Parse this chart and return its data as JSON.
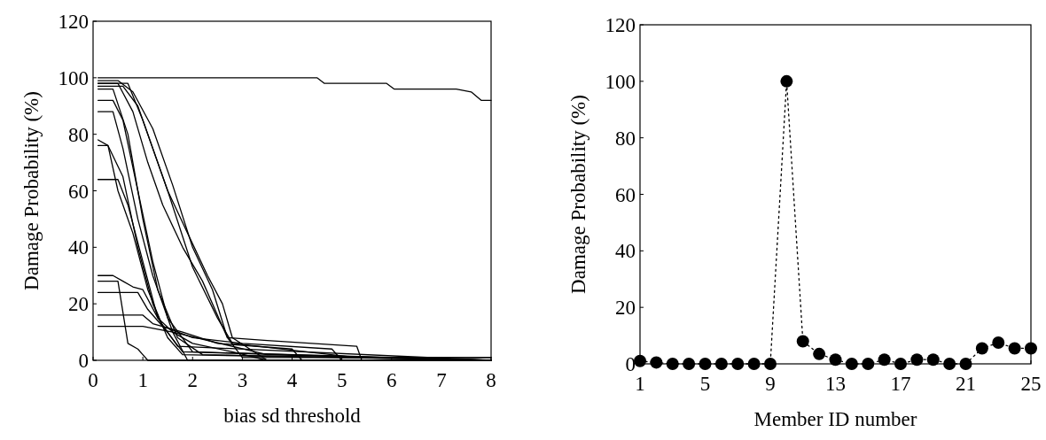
{
  "chart_data": [
    {
      "type": "line",
      "xlabel": "bias sd threshold",
      "ylabel": "Damage Probability (%)",
      "xlim": [
        0,
        8
      ],
      "ylim": [
        0,
        120
      ],
      "xticks": [
        0,
        1,
        2,
        3,
        4,
        5,
        6,
        7,
        8
      ],
      "yticks": [
        0,
        20,
        40,
        60,
        80,
        100,
        120
      ],
      "marker": "none",
      "line_style": "solid",
      "series": [
        {
          "color": "#000000",
          "x": [
            0.1,
            4.5,
            4.65,
            5.9,
            6.05,
            7.3,
            7.6,
            7.8,
            8
          ],
          "values": [
            100,
            100,
            98,
            98,
            96,
            96,
            95,
            92,
            92
          ]
        },
        {
          "color": "#000000",
          "x": [
            0.1,
            0.5,
            0.8,
            1.2,
            1.6,
            2.0,
            2.4,
            2.7,
            3,
            8
          ],
          "values": [
            99,
            99,
            95,
            82,
            62,
            40,
            25,
            8,
            1,
            1
          ]
        },
        {
          "color": "#000000",
          "x": [
            0.1,
            0.7,
            1.0,
            1.5,
            2.0,
            2.5,
            2.8,
            5.3,
            8
          ],
          "values": [
            98,
            98,
            85,
            60,
            33,
            15,
            6,
            1,
            1
          ]
        },
        {
          "color": "#000000",
          "x": [
            0.1,
            0.4,
            0.7,
            1.0,
            1.3,
            1.7,
            2.2,
            8
          ],
          "values": [
            96,
            96,
            80,
            50,
            25,
            8,
            2,
            0
          ]
        },
        {
          "color": "#000000",
          "x": [
            0.1,
            0.4,
            0.6,
            0.9,
            1.2,
            1.5,
            2.0,
            8
          ],
          "values": [
            92,
            92,
            85,
            60,
            35,
            15,
            3,
            0
          ]
        },
        {
          "color": "#000000",
          "x": [
            0.1,
            0.4,
            0.6,
            0.9,
            1.2,
            1.6,
            1.9,
            8
          ],
          "values": [
            88,
            88,
            75,
            50,
            30,
            10,
            0,
            0
          ]
        },
        {
          "color": "#000000",
          "x": [
            0.1,
            0.5,
            0.8,
            1.1,
            1.4,
            1.8,
            2.2,
            2.7,
            3.5,
            5.3,
            5.4,
            8
          ],
          "values": [
            98,
            98,
            88,
            70,
            55,
            40,
            28,
            8,
            7,
            5,
            0,
            0
          ]
        },
        {
          "color": "#000000",
          "x": [
            0.1,
            0.6,
            0.9,
            1.2,
            1.5,
            1.9,
            2.3,
            2.6,
            2.8,
            3.5,
            8
          ],
          "values": [
            97,
            97,
            90,
            75,
            60,
            45,
            30,
            20,
            8,
            0,
            0
          ]
        },
        {
          "color": "#000000",
          "x": [
            0.1,
            0.3,
            0.6,
            0.9,
            1.2,
            1.5,
            1.8,
            8
          ],
          "values": [
            78,
            76,
            65,
            40,
            20,
            8,
            2,
            0
          ]
        },
        {
          "color": "#000000",
          "x": [
            0.1,
            0.3,
            0.5,
            0.8,
            1.1,
            1.4,
            1.8,
            8
          ],
          "values": [
            76,
            76,
            60,
            45,
            25,
            12,
            3,
            0
          ]
        },
        {
          "color": "#000000",
          "x": [
            0.1,
            0.5,
            0.7,
            1.0,
            1.3,
            1.7,
            8
          ],
          "values": [
            64,
            64,
            55,
            35,
            15,
            5,
            0
          ]
        },
        {
          "color": "#000000",
          "x": [
            0.1,
            0.4,
            0.6,
            0.8,
            1.0,
            1.3,
            1.6,
            3.5,
            8
          ],
          "values": [
            30,
            30,
            28,
            26,
            25,
            15,
            10,
            2,
            0
          ]
        },
        {
          "color": "#000000",
          "x": [
            0.1,
            0.5,
            0.7,
            0.9,
            1.0,
            1.1,
            8
          ],
          "values": [
            28,
            28,
            6,
            4,
            2,
            0,
            0
          ]
        },
        {
          "color": "#000000",
          "x": [
            0.1,
            0.9,
            1.1,
            1.4,
            2.0,
            3.0,
            4.8,
            5.0,
            8
          ],
          "values": [
            24,
            24,
            18,
            12,
            8,
            6,
            4,
            0,
            0
          ]
        },
        {
          "color": "#000000",
          "x": [
            0.1,
            1.0,
            1.2,
            1.8,
            2.5,
            4.0,
            4.2,
            8
          ],
          "values": [
            16,
            16,
            13,
            10,
            6,
            4,
            0,
            0
          ]
        },
        {
          "color": "#000000",
          "x": [
            0.1,
            1.0,
            1.6,
            2.0,
            2.8,
            3.5,
            8
          ],
          "values": [
            12,
            12,
            10,
            6,
            3,
            0,
            0
          ]
        }
      ]
    },
    {
      "type": "line",
      "xlabel": "Member ID number",
      "ylabel": "Damage Probability (%)",
      "xlim": [
        1,
        25
      ],
      "ylim": [
        0,
        120
      ],
      "xticks": [
        1,
        5,
        9,
        13,
        17,
        21,
        25
      ],
      "yticks": [
        0,
        20,
        40,
        60,
        80,
        100,
        120
      ],
      "marker": "circle",
      "line_style": "dotted",
      "series": [
        {
          "color": "#000000",
          "x": [
            1,
            2,
            3,
            4,
            5,
            6,
            7,
            8,
            9,
            10,
            11,
            12,
            13,
            14,
            15,
            16,
            17,
            18,
            19,
            20,
            21,
            22,
            23,
            24,
            25
          ],
          "values": [
            1,
            0.5,
            0,
            0,
            0,
            0,
            0,
            0,
            0,
            100,
            8,
            3.5,
            1.5,
            0,
            0,
            1.5,
            0,
            1.5,
            1.5,
            0,
            0,
            5.5,
            7.5,
            5.5,
            5.5
          ]
        }
      ]
    }
  ]
}
